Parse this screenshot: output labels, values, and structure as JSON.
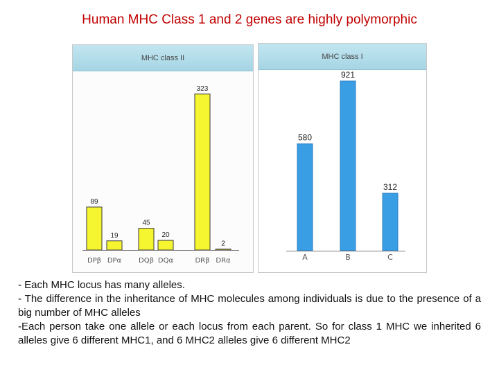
{
  "title": "Human MHC Class 1 and 2  genes are highly polymorphic",
  "chart_data": [
    {
      "type": "bar",
      "title": "MHC class II",
      "categories": [
        "DPβ",
        "DPα",
        "DQβ",
        "DQα",
        "DRβ",
        "DRα"
      ],
      "values": [
        89,
        19,
        45,
        20,
        323,
        2
      ],
      "data_labels": [
        "89",
        "19",
        "45",
        "20",
        "323",
        "2"
      ],
      "ylim": [
        0,
        370
      ],
      "grid": false,
      "colors": {
        "bar": "#f5f530",
        "bar_stroke": "#3a3a3a",
        "panel_header": "#b4dde9"
      }
    },
    {
      "type": "bar",
      "title": "MHC class I",
      "categories": [
        "A",
        "B",
        "C"
      ],
      "values": [
        580,
        921,
        312
      ],
      "data_labels": [
        "580",
        "921",
        "312"
      ],
      "ylim": [
        0,
        1000
      ],
      "grid": false,
      "colors": {
        "bar": "#3a9ee4",
        "bar_stroke": "#2b7fc0",
        "panel_header": "#b4dde9"
      }
    }
  ],
  "bullets": [
    "-  Each MHC  locus has many alleles.",
    "- The difference in the inheritance of MHC molecules among individuals is due to the presence of a big number of MHC  alleles",
    "-Each person take one allele or each locus from each parent. So for class 1 MHC we inherited 6 alleles give 6 different MHC1, and 6 MHC2 alleles give 6 different MHC2"
  ]
}
